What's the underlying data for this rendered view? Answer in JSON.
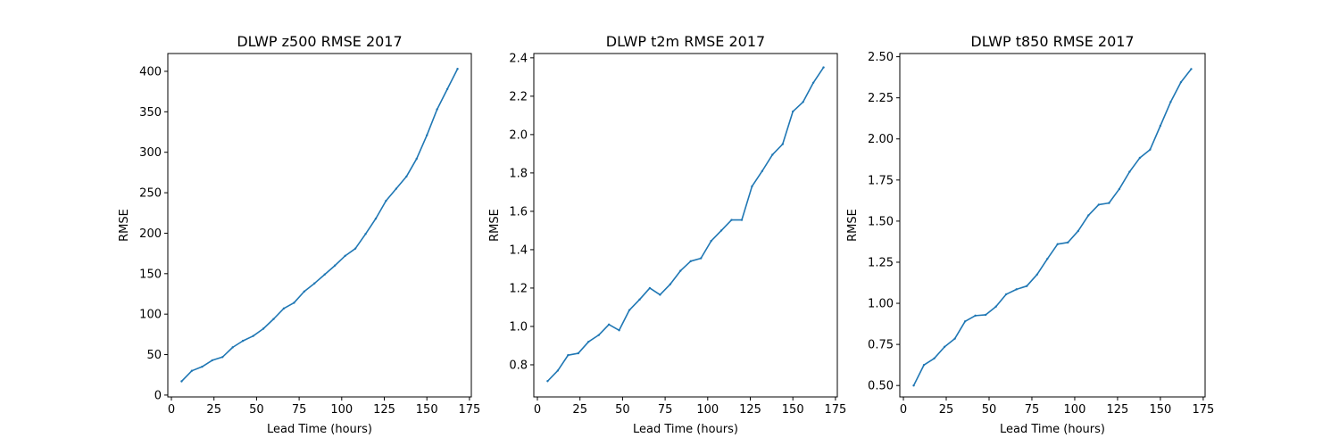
{
  "chart_data": [
    {
      "type": "line",
      "title": "DLWP z500 RMSE 2017",
      "xlabel": "Lead Time (hours)",
      "ylabel": "RMSE",
      "xlim": [
        -2.1,
        176.1
      ],
      "ylim": [
        -2.3,
        422
      ],
      "xticks": [
        0,
        25,
        50,
        75,
        100,
        125,
        150,
        175
      ],
      "xtick_labels": [
        "0",
        "25",
        "50",
        "75",
        "100",
        "125",
        "150",
        "175"
      ],
      "yticks": [
        0,
        50,
        100,
        150,
        200,
        250,
        300,
        350,
        400
      ],
      "ytick_labels": [
        "0",
        "50",
        "100",
        "150",
        "200",
        "250",
        "300",
        "350",
        "400"
      ],
      "grid": false,
      "color": "#1f77b4",
      "x": [
        6,
        12,
        18,
        24,
        30,
        36,
        42,
        48,
        54,
        60,
        66,
        72,
        78,
        84,
        90,
        96,
        102,
        108,
        114,
        120,
        126,
        132,
        138,
        144,
        150,
        156,
        162,
        168
      ],
      "y": [
        17,
        30,
        35,
        43,
        47,
        59,
        67,
        73,
        82,
        94,
        107,
        114,
        128,
        138,
        149,
        160,
        172,
        181,
        199,
        218,
        240,
        255,
        270,
        292,
        321,
        353,
        378,
        403
      ]
    },
    {
      "type": "line",
      "title": "DLWP t2m RMSE 2017",
      "xlabel": "Lead Time (hours)",
      "ylabel": "RMSE",
      "xlim": [
        -2.1,
        176.1
      ],
      "ylim": [
        0.6325,
        2.4225
      ],
      "xticks": [
        0,
        25,
        50,
        75,
        100,
        125,
        150,
        175
      ],
      "xtick_labels": [
        "0",
        "25",
        "50",
        "75",
        "100",
        "125",
        "150",
        "175"
      ],
      "yticks": [
        0.8,
        1.0,
        1.2,
        1.4,
        1.6,
        1.8,
        2.0,
        2.2,
        2.4
      ],
      "ytick_labels": [
        "0.8",
        "1.0",
        "1.2",
        "1.4",
        "1.6",
        "1.8",
        "2.0",
        "2.2",
        "2.4"
      ],
      "grid": false,
      "color": "#1f77b4",
      "x": [
        6,
        12,
        18,
        24,
        30,
        36,
        42,
        48,
        54,
        60,
        66,
        72,
        78,
        84,
        90,
        96,
        102,
        108,
        114,
        120,
        126,
        132,
        138,
        144,
        150,
        156,
        162,
        168
      ],
      "y": [
        0.715,
        0.77,
        0.85,
        0.86,
        0.92,
        0.955,
        1.01,
        0.98,
        1.085,
        1.14,
        1.2,
        1.165,
        1.22,
        1.29,
        1.34,
        1.355,
        1.445,
        1.5,
        1.555,
        1.555,
        1.73,
        1.81,
        1.895,
        1.95,
        2.12,
        2.17,
        2.27,
        2.35
      ]
    },
    {
      "type": "line",
      "title": "DLWP t850 RMSE 2017",
      "xlabel": "Lead Time (hours)",
      "ylabel": "RMSE",
      "xlim": [
        -2.1,
        176.1
      ],
      "ylim": [
        0.4305,
        2.5195
      ],
      "xticks": [
        0,
        25,
        50,
        75,
        100,
        125,
        150,
        175
      ],
      "xtick_labels": [
        "0",
        "25",
        "50",
        "75",
        "100",
        "125",
        "150",
        "175"
      ],
      "yticks": [
        0.5,
        0.75,
        1.0,
        1.25,
        1.5,
        1.75,
        2.0,
        2.25,
        2.5
      ],
      "ytick_labels": [
        "0.50",
        "0.75",
        "1.00",
        "1.25",
        "1.50",
        "1.75",
        "2.00",
        "2.25",
        "2.50"
      ],
      "grid": false,
      "color": "#1f77b4",
      "x": [
        6,
        12,
        18,
        24,
        30,
        36,
        42,
        48,
        54,
        60,
        66,
        72,
        78,
        84,
        90,
        96,
        102,
        108,
        114,
        120,
        126,
        132,
        138,
        144,
        150,
        156,
        162,
        168
      ],
      "y": [
        0.5,
        0.625,
        0.665,
        0.735,
        0.785,
        0.89,
        0.925,
        0.93,
        0.98,
        1.055,
        1.085,
        1.105,
        1.175,
        1.27,
        1.36,
        1.37,
        1.44,
        1.535,
        1.6,
        1.61,
        1.695,
        1.8,
        1.885,
        1.935,
        2.08,
        2.225,
        2.345,
        2.425
      ]
    }
  ]
}
